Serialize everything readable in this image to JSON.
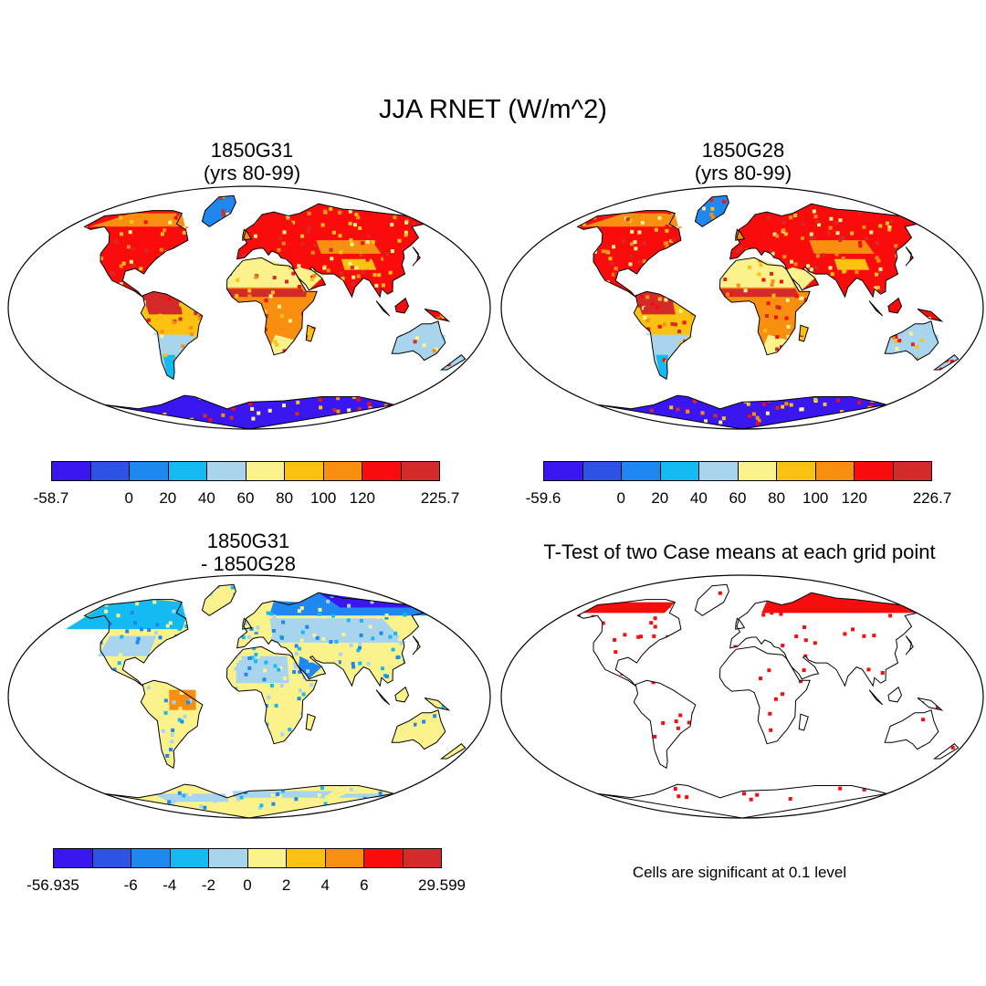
{
  "figure": {
    "title": "JJA RNET (W/m^2)",
    "colors": [
      "#3a17f0",
      "#2e52e6",
      "#1e88f0",
      "#14baf2",
      "#a8d4ee",
      "#fbf28c",
      "#fbc212",
      "#f98f10",
      "#fb0c0c",
      "#d42a2a"
    ],
    "panels": [
      {
        "id": "p1",
        "title_line1": "1850G31",
        "title_line2": "(yrs 80-99)",
        "colorbar": {
          "labels": [
            "-58.7",
            "0",
            "20",
            "40",
            "60",
            "80",
            "100",
            "120",
            "225.7"
          ]
        }
      },
      {
        "id": "p2",
        "title_line1": "1850G28",
        "title_line2": "(yrs 80-99)",
        "colorbar": {
          "labels": [
            "-59.6",
            "0",
            "20",
            "40",
            "60",
            "80",
            "100",
            "120",
            "226.7"
          ]
        }
      },
      {
        "id": "p3",
        "title_line1": "1850G31",
        "title_line2": "- 1850G28",
        "colorbar": {
          "labels": [
            "-56.935",
            "-6",
            "-4",
            "-2",
            "0",
            "2",
            "4",
            "6",
            "29.599"
          ]
        }
      },
      {
        "id": "p4",
        "title_line1": "T-Test of two Case means at each grid point",
        "note": "Cells are significant at 0.1 level"
      }
    ]
  }
}
